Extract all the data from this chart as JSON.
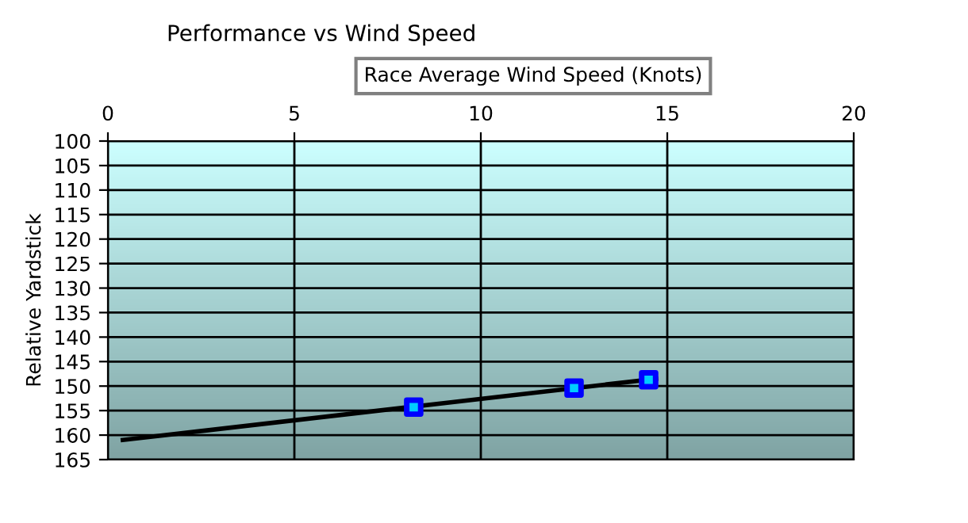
{
  "chart_data": {
    "type": "scatter",
    "title": "Performance vs Wind Speed",
    "xlabel": "Race Average Wind Speed (Knots)",
    "ylabel": "Relative Yardstick",
    "series": [
      {
        "color": "#0000ff",
        "marker": "square",
        "x": [
          8.2,
          12.5,
          14.5
        ],
        "values": [
          154.3,
          150.4,
          148.7
        ]
      },
      {
        "type": "line",
        "color": "#000000",
        "marker": "none",
        "x": [
          0.4,
          14.7
        ],
        "values": [
          161.0,
          148.5
        ]
      }
    ],
    "xlim": [
      0,
      20
    ],
    "xticks": [
      0,
      5,
      10,
      15,
      20
    ],
    "ylim": [
      165,
      100
    ],
    "yticks": [
      100,
      105,
      110,
      115,
      120,
      125,
      130,
      135,
      140,
      145,
      150,
      155,
      160,
      165
    ],
    "grid": true,
    "legend": false
  }
}
